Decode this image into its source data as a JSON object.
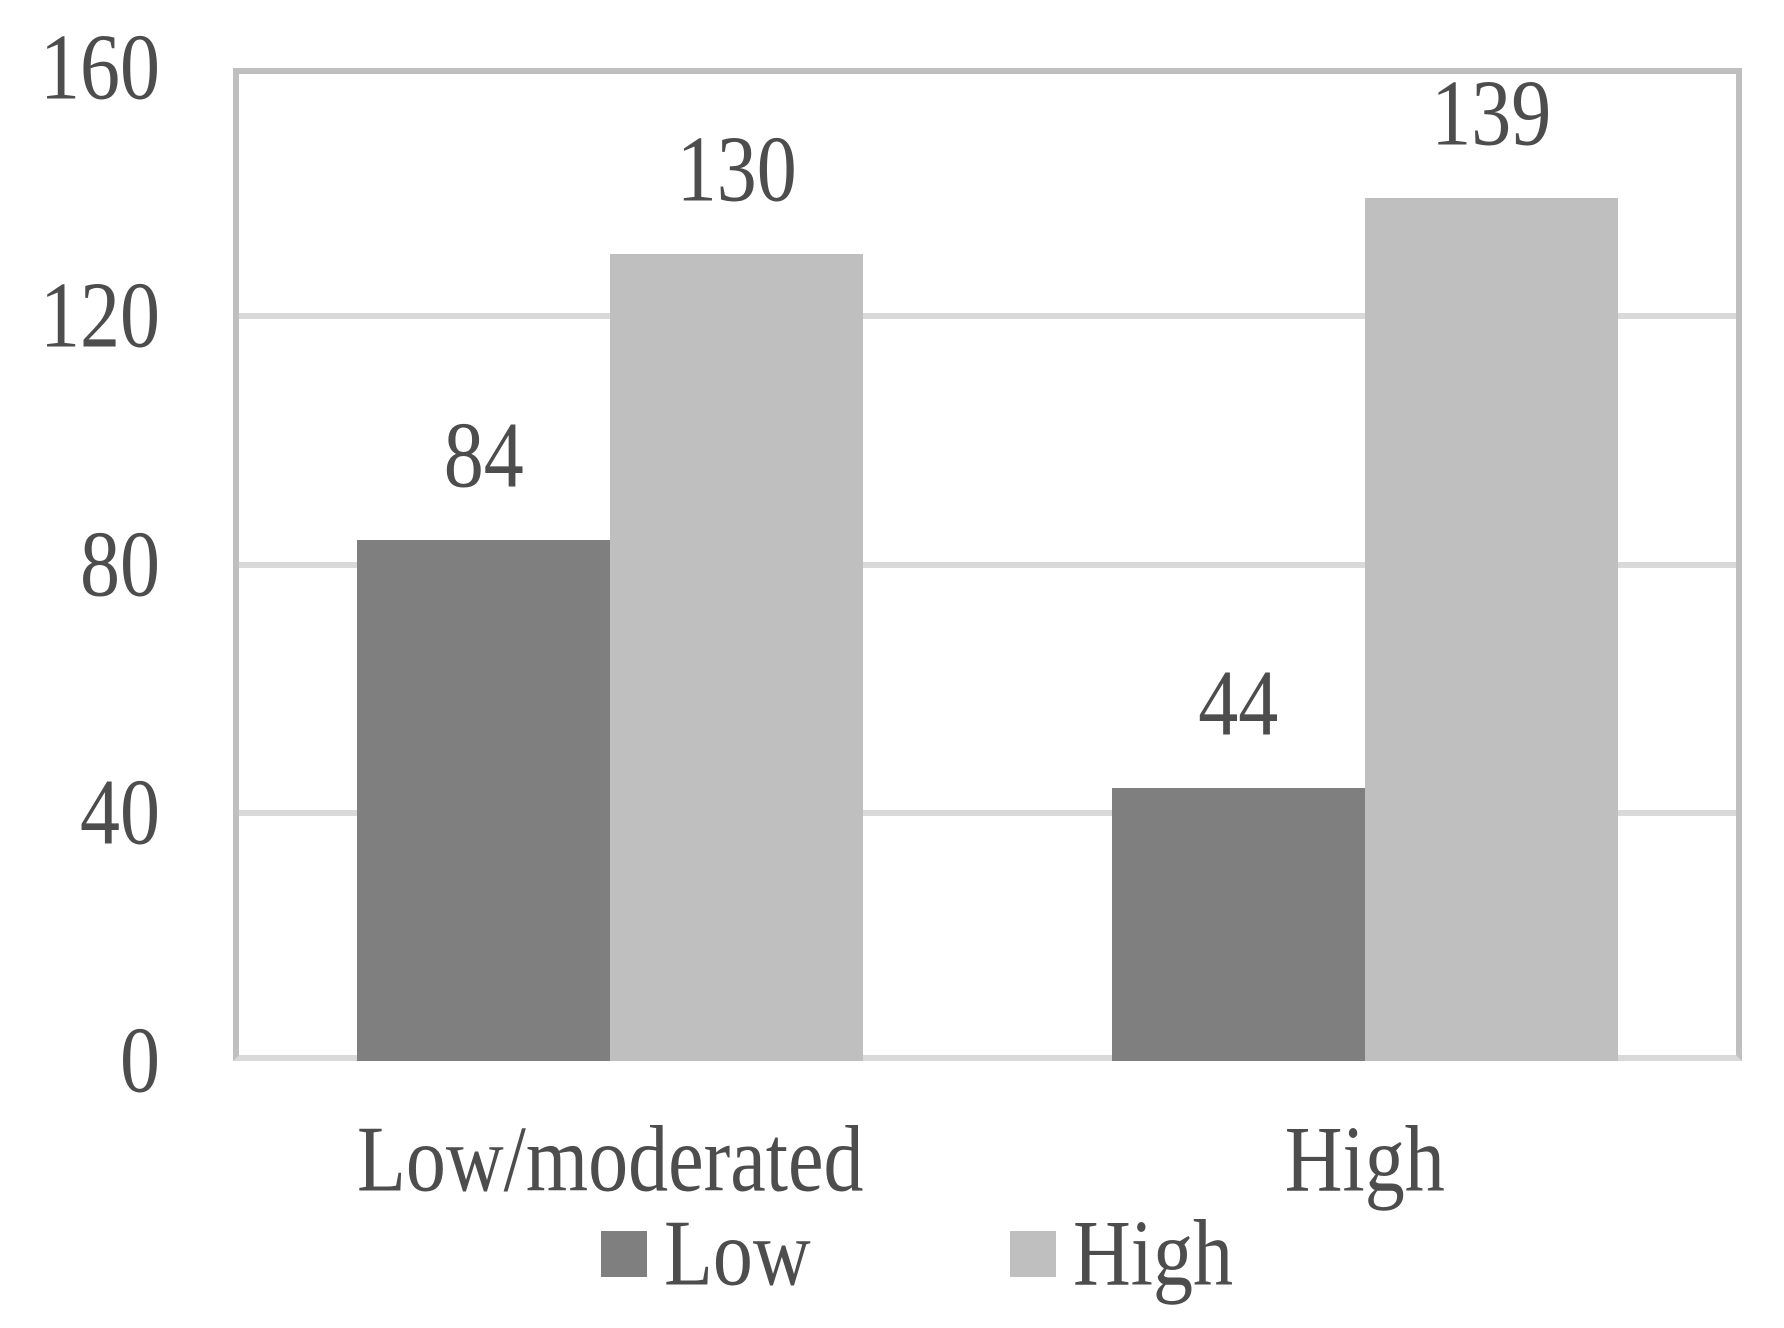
{
  "chart_data": {
    "type": "bar",
    "title": "",
    "categories": [
      "Low/moderated",
      "High"
    ],
    "series": [
      {
        "name": "Low",
        "color": "#7f7f7f",
        "values": [
          84,
          44
        ]
      },
      {
        "name": "High",
        "color": "#bfbfbf",
        "values": [
          130,
          139
        ]
      }
    ],
    "data_labels": [
      {
        "series": "Low",
        "category": "Low/moderated",
        "text": "84"
      },
      {
        "series": "High",
        "category": "Low/moderated",
        "text": "130"
      },
      {
        "series": "Low",
        "category": "High",
        "text": "44"
      },
      {
        "series": "High",
        "category": "High",
        "text": "139"
      }
    ],
    "xlabel": "",
    "ylabel": "",
    "ylim": [
      0,
      160
    ],
    "y_ticks": [
      "0",
      "40",
      "80",
      "120",
      "160"
    ],
    "grid": true,
    "legend_position": "bottom",
    "legend_entries": [
      "Low",
      "High"
    ]
  },
  "colors": {
    "background": "#ffffff",
    "bar_low": "#7f7f7f",
    "bar_high": "#bfbfbf",
    "plot_border": "#bfbfbf",
    "axis_line": "#d9d9d9",
    "gridline": "#d9d9d9",
    "text": "#4d4d4d"
  }
}
